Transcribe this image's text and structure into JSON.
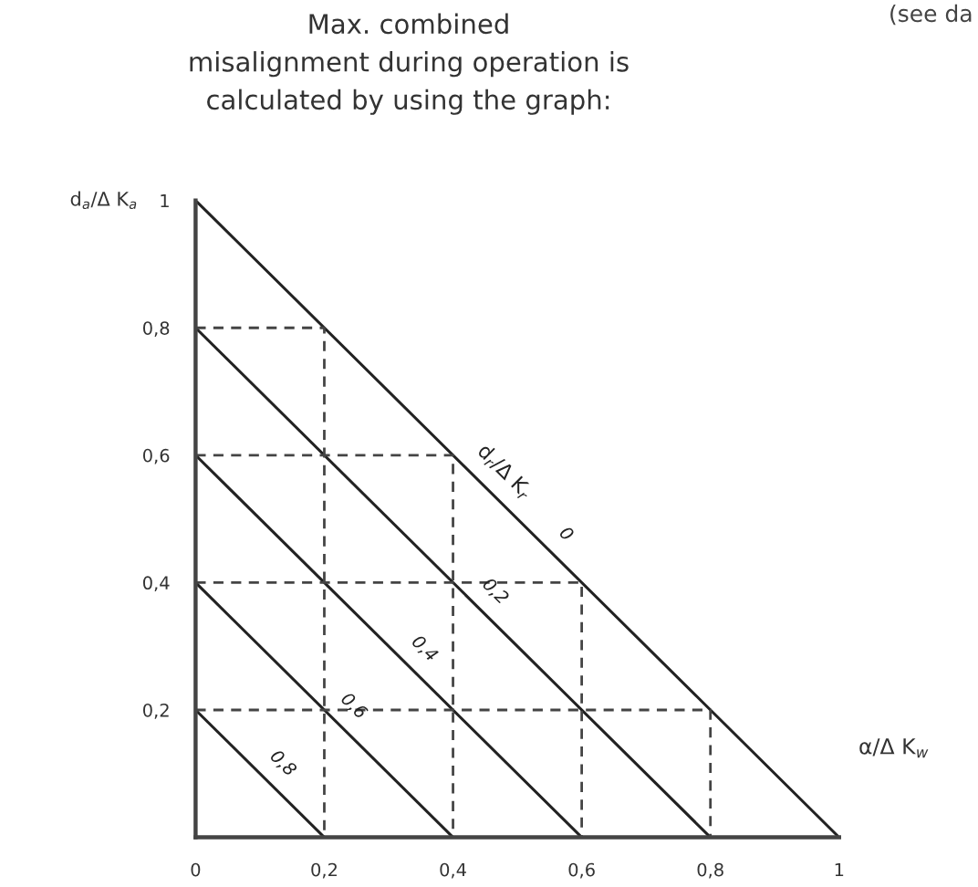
{
  "chart_data": {
    "type": "line",
    "title": "Max. combined\nmisalignment during operation is\ncalculated by using the graph:",
    "xlabel": "α/Δ K$_{w}$",
    "ylabel": "d$_{a}$/Δ K$_{a}$",
    "annotations": [
      "(see da",
      "d$_{r}$/Δ K$_{r}$"
    ],
    "xlim": [
      0,
      1
    ],
    "ylim": [
      0,
      1
    ],
    "xticks": [
      {
        "value": 0,
        "label": "0"
      },
      {
        "value": 0.2,
        "label": "0,2"
      },
      {
        "value": 0.4,
        "label": "0,4"
      },
      {
        "value": 0.6,
        "label": "0,6"
      },
      {
        "value": 0.8,
        "label": "0,8"
      },
      {
        "value": 1,
        "label": "1"
      }
    ],
    "yticks": [
      {
        "value": 0.2,
        "label": "0,2"
      },
      {
        "value": 0.4,
        "label": "0,4"
      },
      {
        "value": 0.6,
        "label": "0,6"
      },
      {
        "value": 0.8,
        "label": "0,8"
      },
      {
        "value": 1,
        "label": "1"
      }
    ],
    "grid": false,
    "marker": "none",
    "series": [
      {
        "name": "0",
        "color": "#222222",
        "x": [
          0,
          1
        ],
        "values": [
          1,
          0
        ]
      },
      {
        "name": "0,2",
        "color": "#222222",
        "x": [
          0,
          0.8
        ],
        "values": [
          0.8,
          0
        ]
      },
      {
        "name": "0,4",
        "color": "#222222",
        "x": [
          0,
          0.6
        ],
        "values": [
          0.6,
          0
        ]
      },
      {
        "name": "0,6",
        "color": "#222222",
        "x": [
          0,
          0.4
        ],
        "values": [
          0.4,
          0
        ]
      },
      {
        "name": "0,8",
        "color": "#222222",
        "x": [
          0,
          0.2
        ],
        "values": [
          0.2,
          0
        ]
      },
      {
        "color": "#444444",
        "line_style": "dashed",
        "x": [
          0,
          0.2,
          0.2
        ],
        "values": [
          0.8,
          0.8,
          0
        ]
      },
      {
        "color": "#444444",
        "line_style": "dashed",
        "x": [
          0,
          0.4,
          0.4
        ],
        "values": [
          0.6,
          0.6,
          0
        ]
      },
      {
        "color": "#444444",
        "line_style": "dashed",
        "x": [
          0,
          0.6,
          0.6
        ],
        "values": [
          0.4,
          0.4,
          0
        ]
      },
      {
        "color": "#444444",
        "line_style": "dashed",
        "x": [
          0,
          0.8,
          0.8
        ],
        "values": [
          0.2,
          0.2,
          0
        ]
      }
    ]
  }
}
